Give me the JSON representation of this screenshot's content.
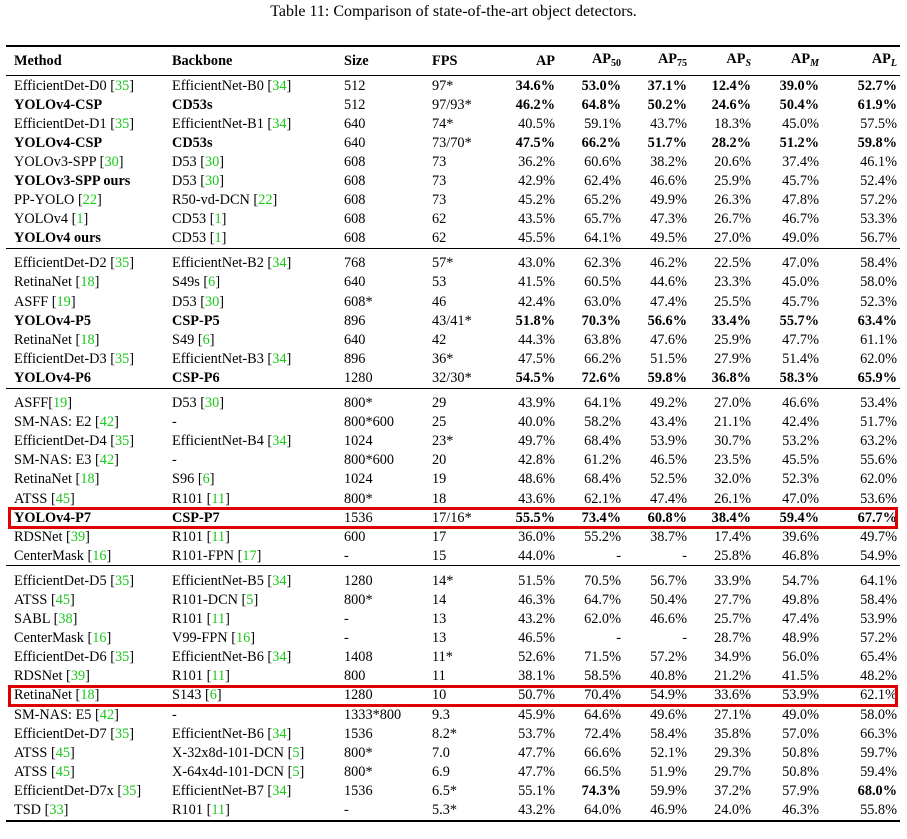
{
  "caption": "Table 11: Comparison of state-of-the-art object detectors.",
  "colors": {
    "ref": "#19c819",
    "highlight": "#e00000"
  },
  "headers": {
    "method": "Method",
    "backbone": "Backbone",
    "size": "Size",
    "fps": "FPS",
    "ap": "AP",
    "ap50_main": "AP",
    "ap50_sub": "50",
    "ap75_main": "AP",
    "ap75_sub": "75",
    "aps_main": "AP",
    "aps_sub": "S",
    "apm_main": "AP",
    "apm_sub": "M",
    "apl_main": "AP",
    "apl_sub": "L"
  },
  "groups": [
    [
      {
        "method": "EfficientDet-D0",
        "mref": "35",
        "backbone": "EfficientNet-B0",
        "bref": "34",
        "size": "512",
        "fps": "97*",
        "ap": "34.6%",
        "ap50": "53.0%",
        "ap75": "37.1%",
        "aps": "12.4%",
        "apm": "39.0%",
        "apl": "52.7%",
        "bold_cols": [
          "ap",
          "ap50",
          "ap75",
          "aps",
          "apm",
          "apl"
        ]
      },
      {
        "method": "YOLOv4-CSP",
        "mref": "",
        "backbone": "CD53s",
        "bref": "",
        "size": "512",
        "fps": "97/93*",
        "ap": "46.2%",
        "ap50": "64.8%",
        "ap75": "50.2%",
        "aps": "24.6%",
        "apm": "50.4%",
        "apl": "61.9%",
        "bold_cols": [
          "method",
          "backbone",
          "ap",
          "ap50",
          "ap75",
          "aps",
          "apm",
          "apl"
        ]
      },
      {
        "method": "EfficientDet-D1",
        "mref": "35",
        "backbone": "EfficientNet-B1",
        "bref": "34",
        "size": "640",
        "fps": "74*",
        "ap": "40.5%",
        "ap50": "59.1%",
        "ap75": "43.7%",
        "aps": "18.3%",
        "apm": "45.0%",
        "apl": "57.5%",
        "bold_cols": []
      },
      {
        "method": "YOLOv4-CSP",
        "mref": "",
        "backbone": "CD53s",
        "bref": "",
        "size": "640",
        "fps": "73/70*",
        "ap": "47.5%",
        "ap50": "66.2%",
        "ap75": "51.7%",
        "aps": "28.2%",
        "apm": "51.2%",
        "apl": "59.8%",
        "bold_cols": [
          "method",
          "backbone",
          "ap",
          "ap50",
          "ap75",
          "aps",
          "apm",
          "apl"
        ]
      },
      {
        "method": "YOLOv3-SPP",
        "mref": "30",
        "backbone": "D53",
        "bref": "30",
        "size": "608",
        "fps": "73",
        "ap": "36.2%",
        "ap50": "60.6%",
        "ap75": "38.2%",
        "aps": "20.6%",
        "apm": "37.4%",
        "apl": "46.1%",
        "bold_cols": []
      },
      {
        "method": "YOLOv3-SPP ours",
        "mref": "",
        "backbone": "D53",
        "bref": "30",
        "size": "608",
        "fps": "73",
        "ap": "42.9%",
        "ap50": "62.4%",
        "ap75": "46.6%",
        "aps": "25.9%",
        "apm": "45.7%",
        "apl": "52.4%",
        "bold_cols": [
          "method"
        ]
      },
      {
        "method": "PP-YOLO",
        "mref": "22",
        "backbone": "R50-vd-DCN",
        "bref": "22",
        "size": "608",
        "fps": "73",
        "ap": "45.2%",
        "ap50": "65.2%",
        "ap75": "49.9%",
        "aps": "26.3%",
        "apm": "47.8%",
        "apl": "57.2%",
        "bold_cols": []
      },
      {
        "method": "YOLOv4",
        "mref": "1",
        "backbone": "CD53",
        "bref": "1",
        "size": "608",
        "fps": "62",
        "ap": "43.5%",
        "ap50": "65.7%",
        "ap75": "47.3%",
        "aps": "26.7%",
        "apm": "46.7%",
        "apl": "53.3%",
        "bold_cols": []
      },
      {
        "method": "YOLOv4 ours",
        "mref": "",
        "backbone": "CD53",
        "bref": "1",
        "size": "608",
        "fps": "62",
        "ap": "45.5%",
        "ap50": "64.1%",
        "ap75": "49.5%",
        "aps": "27.0%",
        "apm": "49.0%",
        "apl": "56.7%",
        "bold_cols": [
          "method"
        ]
      }
    ],
    [
      {
        "method": "EfficientDet-D2",
        "mref": "35",
        "backbone": "EfficientNet-B2",
        "bref": "34",
        "size": "768",
        "fps": "57*",
        "ap": "43.0%",
        "ap50": "62.3%",
        "ap75": "46.2%",
        "aps": "22.5%",
        "apm": "47.0%",
        "apl": "58.4%",
        "bold_cols": []
      },
      {
        "method": "RetinaNet",
        "mref": "18",
        "backbone": "S49s",
        "bref": "6",
        "size": "640",
        "fps": "53",
        "ap": "41.5%",
        "ap50": "60.5%",
        "ap75": "44.6%",
        "aps": "23.3%",
        "apm": "45.0%",
        "apl": "58.0%",
        "bold_cols": []
      },
      {
        "method": "ASFF",
        "mref": "19",
        "backbone": "D53",
        "bref": "30",
        "size": "608*",
        "fps": "46",
        "ap": "42.4%",
        "ap50": "63.0%",
        "ap75": "47.4%",
        "aps": "25.5%",
        "apm": "45.7%",
        "apl": "52.3%",
        "bold_cols": []
      },
      {
        "method": "YOLOv4-P5",
        "mref": "",
        "backbone": "CSP-P5",
        "bref": "",
        "size": "896",
        "fps": "43/41*",
        "ap": "51.8%",
        "ap50": "70.3%",
        "ap75": "56.6%",
        "aps": "33.4%",
        "apm": "55.7%",
        "apl": "63.4%",
        "bold_cols": [
          "method",
          "backbone",
          "ap",
          "ap50",
          "ap75",
          "aps",
          "apm",
          "apl"
        ]
      },
      {
        "method": "RetinaNet",
        "mref": "18",
        "backbone": "S49",
        "bref": "6",
        "size": "640",
        "fps": "42",
        "ap": "44.3%",
        "ap50": "63.8%",
        "ap75": "47.6%",
        "aps": "25.9%",
        "apm": "47.7%",
        "apl": "61.1%",
        "bold_cols": []
      },
      {
        "method": "EfficientDet-D3",
        "mref": "35",
        "backbone": "EfficientNet-B3",
        "bref": "34",
        "size": "896",
        "fps": "36*",
        "ap": "47.5%",
        "ap50": "66.2%",
        "ap75": "51.5%",
        "aps": "27.9%",
        "apm": "51.4%",
        "apl": "62.0%",
        "bold_cols": []
      },
      {
        "method": "YOLOv4-P6",
        "mref": "",
        "backbone": "CSP-P6",
        "bref": "",
        "size": "1280",
        "fps": "32/30*",
        "ap": "54.5%",
        "ap50": "72.6%",
        "ap75": "59.8%",
        "aps": "36.8%",
        "apm": "58.3%",
        "apl": "65.9%",
        "bold_cols": [
          "method",
          "backbone",
          "ap",
          "ap50",
          "ap75",
          "aps",
          "apm",
          "apl"
        ]
      }
    ],
    [
      {
        "method": "ASFF",
        "mref": "19",
        "mref_nospace": true,
        "backbone": "D53",
        "bref": "30",
        "size": "800*",
        "fps": "29",
        "ap": "43.9%",
        "ap50": "64.1%",
        "ap75": "49.2%",
        "aps": "27.0%",
        "apm": "46.6%",
        "apl": "53.4%",
        "bold_cols": []
      },
      {
        "method": "SM-NAS: E2",
        "mref": "42",
        "backbone": "-",
        "bref": "",
        "size": "800*600",
        "fps": "25",
        "ap": "40.0%",
        "ap50": "58.2%",
        "ap75": "43.4%",
        "aps": "21.1%",
        "apm": "42.4%",
        "apl": "51.7%",
        "bold_cols": []
      },
      {
        "method": "EfficientDet-D4",
        "mref": "35",
        "backbone": "EfficientNet-B4",
        "bref": "34",
        "size": "1024",
        "fps": "23*",
        "ap": "49.7%",
        "ap50": "68.4%",
        "ap75": "53.9%",
        "aps": "30.7%",
        "apm": "53.2%",
        "apl": "63.2%",
        "bold_cols": []
      },
      {
        "method": "SM-NAS: E3",
        "mref": "42",
        "backbone": "-",
        "bref": "",
        "size": "800*600",
        "fps": "20",
        "ap": "42.8%",
        "ap50": "61.2%",
        "ap75": "46.5%",
        "aps": "23.5%",
        "apm": "45.5%",
        "apl": "55.6%",
        "bold_cols": []
      },
      {
        "method": "RetinaNet",
        "mref": "18",
        "backbone": "S96",
        "bref": "6",
        "size": "1024",
        "fps": "19",
        "ap": "48.6%",
        "ap50": "68.4%",
        "ap75": "52.5%",
        "aps": "32.0%",
        "apm": "52.3%",
        "apl": "62.0%",
        "bold_cols": []
      },
      {
        "method": "ATSS",
        "mref": "45",
        "backbone": "R101",
        "bref": "11",
        "size": "800*",
        "fps": "18",
        "ap": "43.6%",
        "ap50": "62.1%",
        "ap75": "47.4%",
        "aps": "26.1%",
        "apm": "47.0%",
        "apl": "53.6%",
        "bold_cols": []
      },
      {
        "method": "YOLOv4-P7",
        "mref": "",
        "backbone": "CSP-P7",
        "bref": "",
        "size": "1536",
        "fps": "17/16*",
        "ap": "55.5%",
        "ap50": "73.4%",
        "ap75": "60.8%",
        "aps": "38.4%",
        "apm": "59.4%",
        "apl": "67.7%",
        "bold_cols": [
          "method",
          "backbone",
          "ap",
          "ap50",
          "ap75",
          "aps",
          "apm",
          "apl"
        ],
        "highlight": true
      },
      {
        "method": "RDSNet",
        "mref": "39",
        "backbone": "R101",
        "bref": "11",
        "size": "600",
        "fps": "17",
        "ap": "36.0%",
        "ap50": "55.2%",
        "ap75": "38.7%",
        "aps": "17.4%",
        "apm": "39.6%",
        "apl": "49.7%",
        "bold_cols": []
      },
      {
        "method": "CenterMask",
        "mref": "16",
        "backbone": "R101-FPN",
        "bref": "17",
        "size": "-",
        "fps": "15",
        "ap": "44.0%",
        "ap50": "-",
        "ap75": "-",
        "aps": "25.8%",
        "apm": "46.8%",
        "apl": "54.9%",
        "bold_cols": []
      }
    ],
    [
      {
        "method": "EfficientDet-D5",
        "mref": "35",
        "backbone": "EfficientNet-B5",
        "bref": "34",
        "size": "1280",
        "fps": "14*",
        "ap": "51.5%",
        "ap50": "70.5%",
        "ap75": "56.7%",
        "aps": "33.9%",
        "apm": "54.7%",
        "apl": "64.1%",
        "bold_cols": []
      },
      {
        "method": "ATSS",
        "mref": "45",
        "backbone": "R101-DCN",
        "bref": "5",
        "size": "800*",
        "fps": "14",
        "ap": "46.3%",
        "ap50": "64.7%",
        "ap75": "50.4%",
        "aps": "27.7%",
        "apm": "49.8%",
        "apl": "58.4%",
        "bold_cols": []
      },
      {
        "method": "SABL",
        "mref": "38",
        "backbone": "R101",
        "bref": "11",
        "size": "-",
        "fps": "13",
        "ap": "43.2%",
        "ap50": "62.0%",
        "ap75": "46.6%",
        "aps": "25.7%",
        "apm": "47.4%",
        "apl": "53.9%",
        "bold_cols": []
      },
      {
        "method": "CenterMask",
        "mref": "16",
        "backbone": "V99-FPN",
        "bref": "16",
        "size": "-",
        "fps": "13",
        "ap": "46.5%",
        "ap50": "-",
        "ap75": "-",
        "aps": "28.7%",
        "apm": "48.9%",
        "apl": "57.2%",
        "bold_cols": []
      },
      {
        "method": "EfficientDet-D6",
        "mref": "35",
        "backbone": "EfficientNet-B6",
        "bref": "34",
        "size": "1408",
        "fps": "11*",
        "ap": "52.6%",
        "ap50": "71.5%",
        "ap75": "57.2%",
        "aps": "34.9%",
        "apm": "56.0%",
        "apl": "65.4%",
        "bold_cols": []
      },
      {
        "method": "RDSNet",
        "mref": "39",
        "backbone": "R101",
        "bref": "11",
        "size": "800",
        "fps": "11",
        "ap": "38.1%",
        "ap50": "58.5%",
        "ap75": "40.8%",
        "aps": "21.2%",
        "apm": "41.5%",
        "apl": "48.2%",
        "bold_cols": []
      },
      {
        "method": "RetinaNet",
        "mref": "18",
        "backbone": "S143",
        "bref": "6",
        "size": "1280",
        "fps": "10",
        "ap": "50.7%",
        "ap50": "70.4%",
        "ap75": "54.9%",
        "aps": "33.6%",
        "apm": "53.9%",
        "apl": "62.1%",
        "bold_cols": [],
        "highlight": true
      },
      {
        "method": "SM-NAS: E5",
        "mref": "42",
        "backbone": "-",
        "bref": "",
        "size": "1333*800",
        "fps": "9.3",
        "ap": "45.9%",
        "ap50": "64.6%",
        "ap75": "49.6%",
        "aps": "27.1%",
        "apm": "49.0%",
        "apl": "58.0%",
        "bold_cols": []
      },
      {
        "method": "EfficientDet-D7",
        "mref": "35",
        "backbone": "EfficientNet-B6",
        "bref": "34",
        "size": "1536",
        "fps": "8.2*",
        "ap": "53.7%",
        "ap50": "72.4%",
        "ap75": "58.4%",
        "aps": "35.8%",
        "apm": "57.0%",
        "apl": "66.3%",
        "bold_cols": []
      },
      {
        "method": "ATSS",
        "mref": "45",
        "backbone": "X-32x8d-101-DCN",
        "bref": "5",
        "size": "800*",
        "fps": "7.0",
        "ap": "47.7%",
        "ap50": "66.6%",
        "ap75": "52.1%",
        "aps": "29.3%",
        "apm": "50.8%",
        "apl": "59.7%",
        "bold_cols": []
      },
      {
        "method": "ATSS",
        "mref": "45",
        "backbone": "X-64x4d-101-DCN",
        "bref": "5",
        "size": "800*",
        "fps": "6.9",
        "ap": "47.7%",
        "ap50": "66.5%",
        "ap75": "51.9%",
        "aps": "29.7%",
        "apm": "50.8%",
        "apl": "59.4%",
        "bold_cols": []
      },
      {
        "method": "EfficientDet-D7x",
        "mref": "35",
        "backbone": "EfficientNet-B7",
        "bref": "34",
        "size": "1536",
        "fps": "6.5*",
        "ap": "55.1%",
        "ap50": "74.3%",
        "ap75": "59.9%",
        "aps": "37.2%",
        "apm": "57.9%",
        "apl": "68.0%",
        "bold_cols": [
          "ap50",
          "apl"
        ]
      },
      {
        "method": "TSD",
        "mref": "33",
        "backbone": "R101",
        "bref": "11",
        "size": "-",
        "fps": "5.3*",
        "ap": "43.2%",
        "ap50": "64.0%",
        "ap75": "46.9%",
        "aps": "24.0%",
        "apm": "46.3%",
        "apl": "55.8%",
        "bold_cols": []
      }
    ]
  ]
}
